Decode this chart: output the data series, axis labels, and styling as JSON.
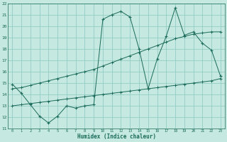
{
  "xlabel": "Humidex (Indice chaleur)",
  "bg_color": "#c5e8e0",
  "grid_color": "#8ac8be",
  "line_color": "#1a6b5a",
  "xlim": [
    -0.5,
    23.5
  ],
  "ylim": [
    11,
    22
  ],
  "xticks": [
    0,
    1,
    2,
    3,
    4,
    5,
    6,
    7,
    8,
    9,
    10,
    11,
    12,
    13,
    14,
    15,
    16,
    17,
    18,
    19,
    20,
    21,
    22,
    23
  ],
  "yticks": [
    11,
    12,
    13,
    14,
    15,
    16,
    17,
    18,
    19,
    20,
    21,
    22
  ],
  "line1_x": [
    0,
    1,
    2,
    3,
    4,
    5,
    6,
    7,
    8,
    9,
    10,
    11,
    12,
    13,
    14,
    15,
    16,
    17,
    18,
    19,
    20,
    21,
    22,
    23
  ],
  "line1_y": [
    14.9,
    14.1,
    13.1,
    12.1,
    11.5,
    12.1,
    13.0,
    12.8,
    13.0,
    13.1,
    20.6,
    21.0,
    21.3,
    20.8,
    18.0,
    14.5,
    17.1,
    19.1,
    21.6,
    19.2,
    19.5,
    18.5,
    17.9,
    15.6
  ],
  "line2_x": [
    0,
    1,
    2,
    3,
    4,
    5,
    6,
    7,
    8,
    9,
    10,
    11,
    12,
    13,
    14,
    15,
    16,
    17,
    18,
    19,
    20,
    21,
    22,
    23
  ],
  "line2_y": [
    14.5,
    14.6,
    14.8,
    15.0,
    15.2,
    15.4,
    15.6,
    15.8,
    16.0,
    16.2,
    16.5,
    16.8,
    17.1,
    17.4,
    17.7,
    18.0,
    18.3,
    18.6,
    18.9,
    19.1,
    19.3,
    19.4,
    19.5,
    19.5
  ],
  "line3_x": [
    0,
    1,
    2,
    3,
    4,
    5,
    6,
    7,
    8,
    9,
    10,
    11,
    12,
    13,
    14,
    15,
    16,
    17,
    18,
    19,
    20,
    21,
    22,
    23
  ],
  "line3_y": [
    13.0,
    13.1,
    13.2,
    13.3,
    13.4,
    13.5,
    13.6,
    13.7,
    13.8,
    13.9,
    14.0,
    14.1,
    14.2,
    14.3,
    14.4,
    14.5,
    14.6,
    14.7,
    14.8,
    14.9,
    15.0,
    15.1,
    15.2,
    15.4
  ]
}
